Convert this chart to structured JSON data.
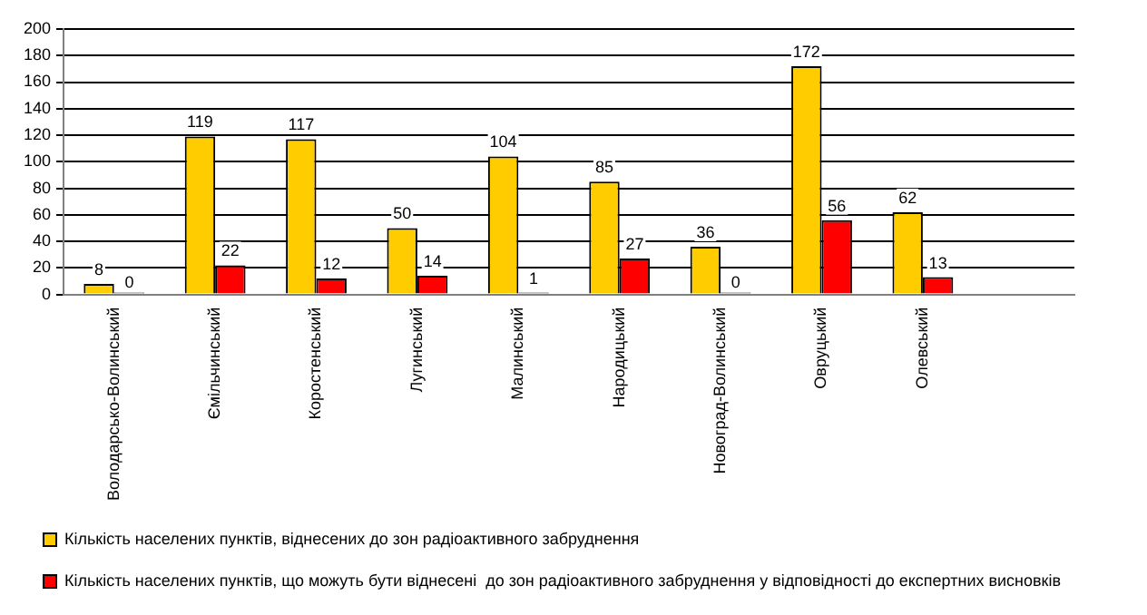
{
  "chart_data": {
    "type": "bar",
    "categories": [
      "Володарсько-Волинський",
      "Ємільчинський",
      "Коростенський",
      "Лугинський",
      "Малинський",
      "Народицький",
      "Новоград-Волинський",
      "Овруцький",
      "Олевський",
      null
    ],
    "series": [
      {
        "name": "Кількість населених пунктів, віднесених до зон радіоактивного забруднення",
        "color": "#ffcc00",
        "values": [
          8,
          119,
          117,
          50,
          104,
          85,
          36,
          172,
          62,
          null
        ]
      },
      {
        "name": "Кількість населених пунктів, що можуть бути віднесені  до зон радіоактивного забруднення у відповідності до експертних висновків",
        "color": "#ff0000",
        "values": [
          0,
          22,
          12,
          14,
          1,
          27,
          0,
          56,
          13,
          null
        ]
      }
    ],
    "ylim": [
      0,
      200
    ],
    "yticks": [
      0,
      20,
      40,
      60,
      80,
      100,
      120,
      140,
      160,
      180,
      200
    ],
    "grid": "y",
    "legend": "bottom",
    "data_labels": true
  }
}
